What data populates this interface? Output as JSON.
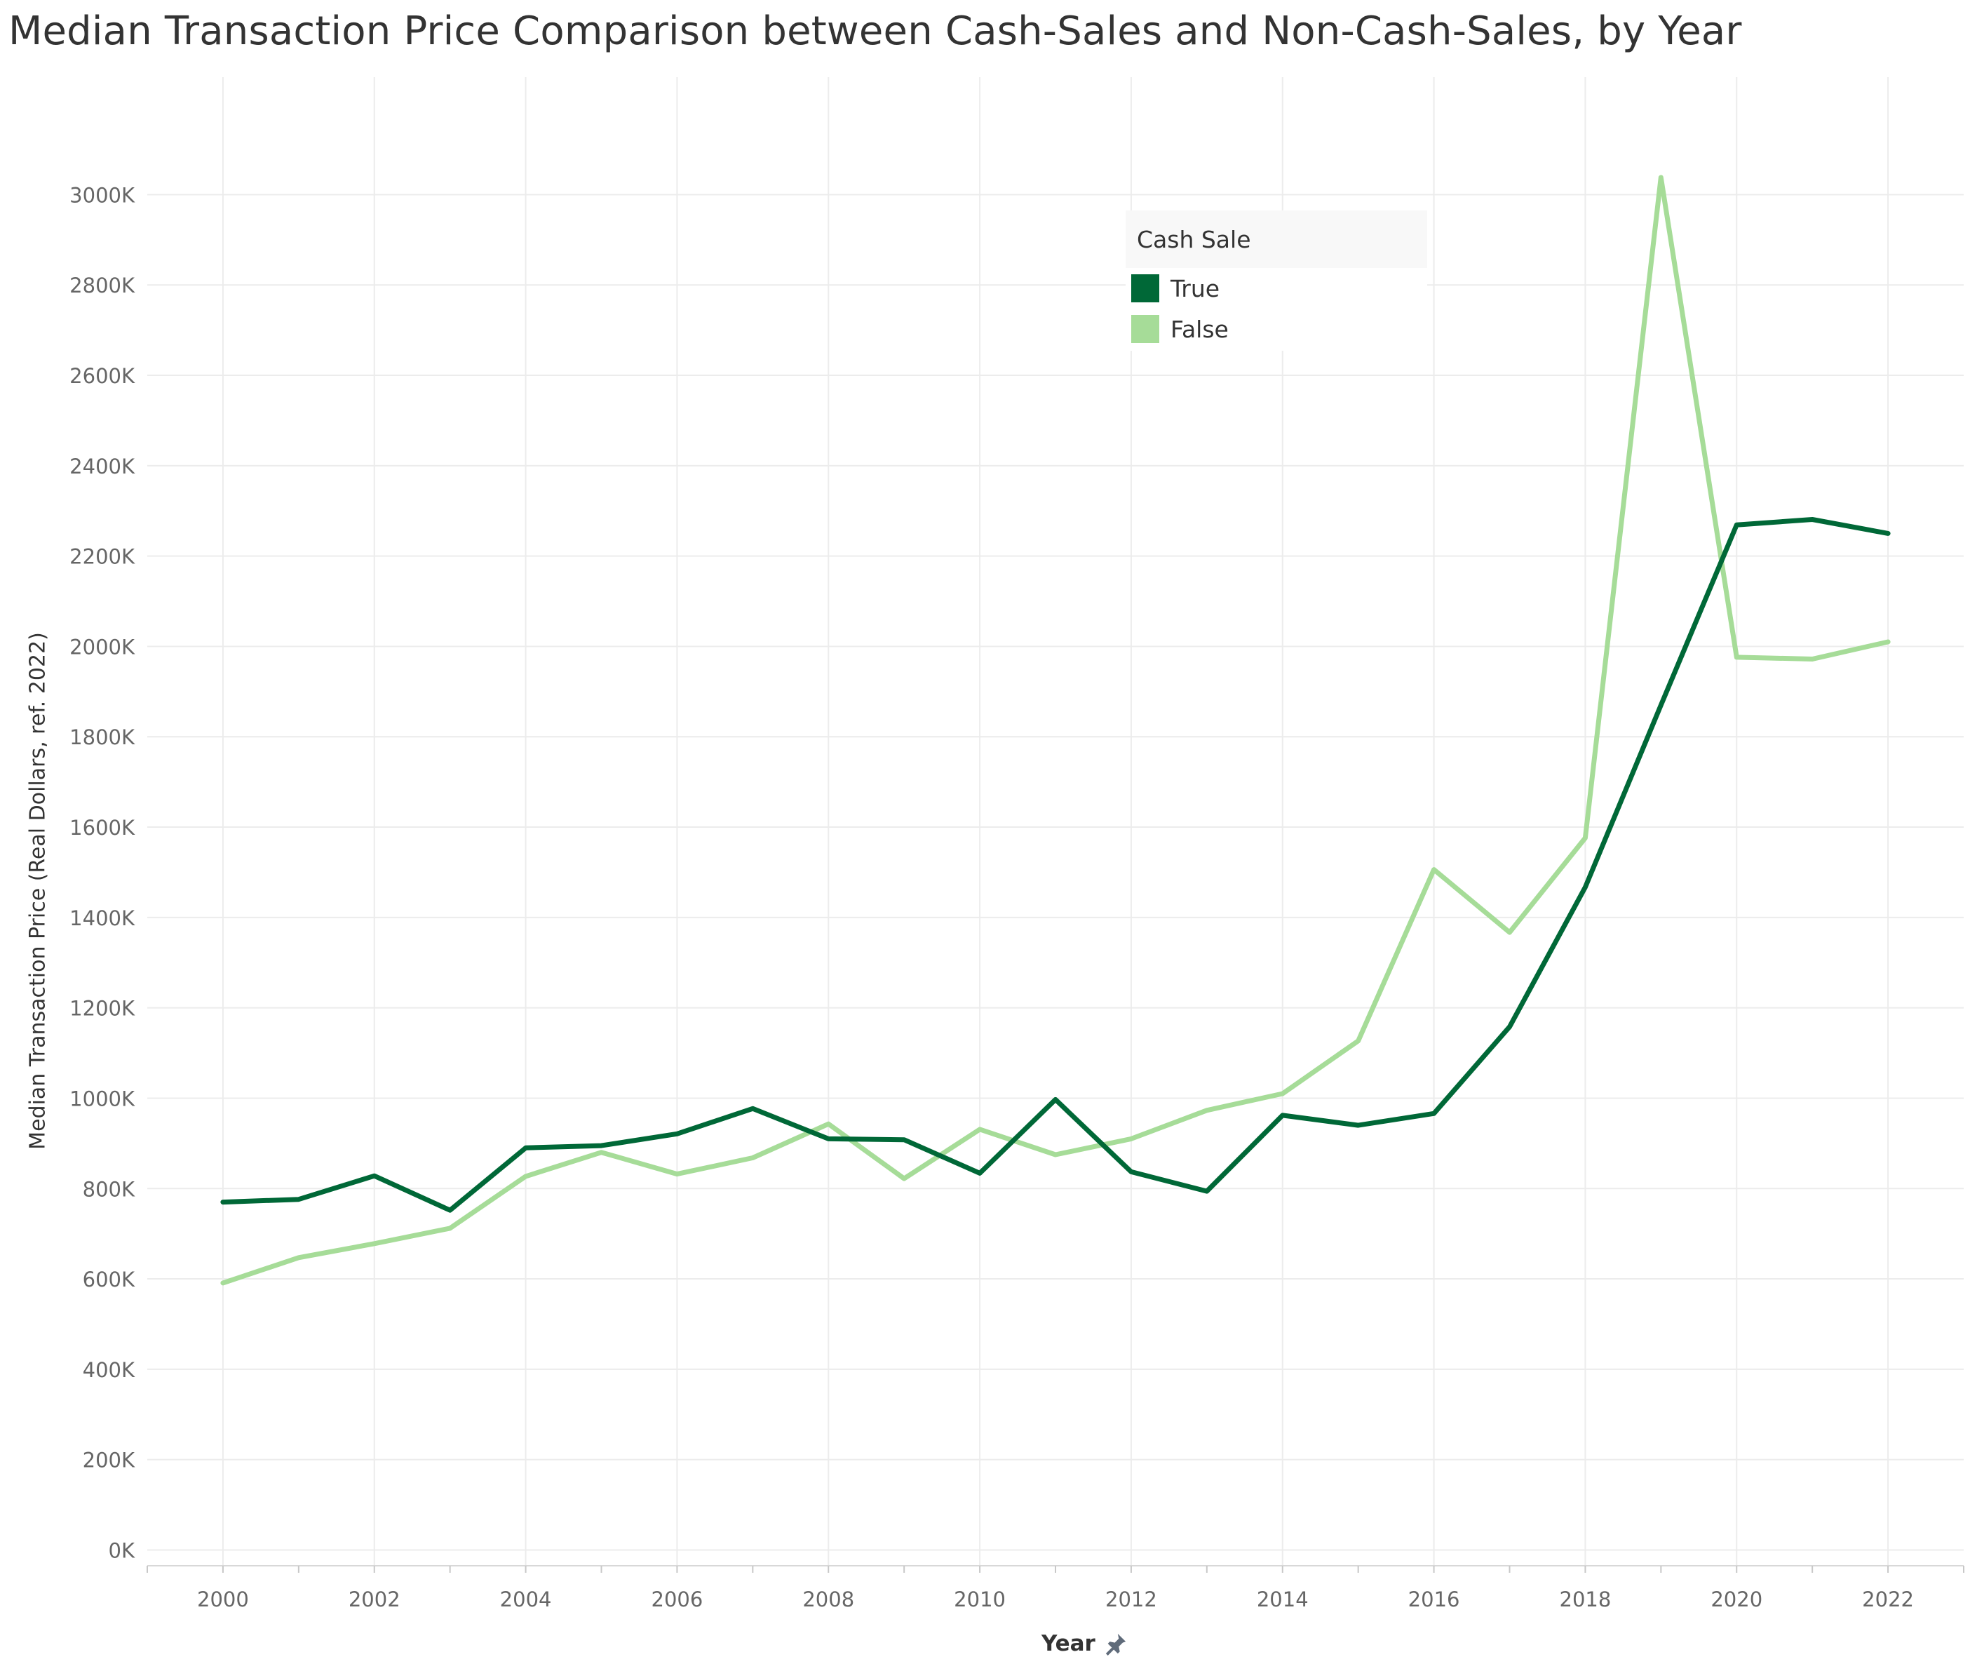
{
  "chart_data": {
    "type": "line",
    "title": "Median Transaction Price Comparison between Cash-Sales and Non-Cash-Sales, by Year",
    "xlabel": "Year",
    "ylabel": "Median Transaction Price (Real Dollars, ref. 2022)",
    "x_ticks": [
      "2000",
      "2002",
      "2004",
      "2006",
      "2008",
      "2010",
      "2012",
      "2014",
      "2016",
      "2018",
      "2020",
      "2022"
    ],
    "y_ticks": [
      "0K",
      "200K",
      "400K",
      "600K",
      "800K",
      "1000K",
      "1200K",
      "1400K",
      "1600K",
      "1800K",
      "2000K",
      "2200K",
      "2400K",
      "2600K",
      "2800K",
      "3000K"
    ],
    "x": [
      2000,
      2001,
      2002,
      2003,
      2004,
      2005,
      2006,
      2007,
      2008,
      2009,
      2010,
      2011,
      2012,
      2013,
      2014,
      2015,
      2016,
      2017,
      2018,
      2019,
      2020,
      2021,
      2022
    ],
    "xlim": [
      1999,
      2023
    ],
    "ylim": [
      -35000,
      3260000
    ],
    "grid": true,
    "legend_title": "Cash Sale",
    "legend_position": "top-right",
    "series": [
      {
        "name": "True",
        "color": "#006837",
        "values": [
          770000,
          776000,
          828000,
          752000,
          890000,
          895000,
          921000,
          977000,
          910000,
          908000,
          834000,
          997000,
          837000,
          794000,
          962000,
          940000,
          966000,
          1158000,
          1467000,
          1870000,
          2269000,
          2281000,
          2250000
        ]
      },
      {
        "name": "False",
        "color": "#a6dc98",
        "values": [
          591000,
          647000,
          678000,
          712000,
          827000,
          880000,
          832000,
          868000,
          943000,
          822000,
          931000,
          875000,
          910000,
          973000,
          1010000,
          1127000,
          1506000,
          1367000,
          1576000,
          3038000,
          1976000,
          1972000,
          2010000
        ]
      }
    ]
  }
}
